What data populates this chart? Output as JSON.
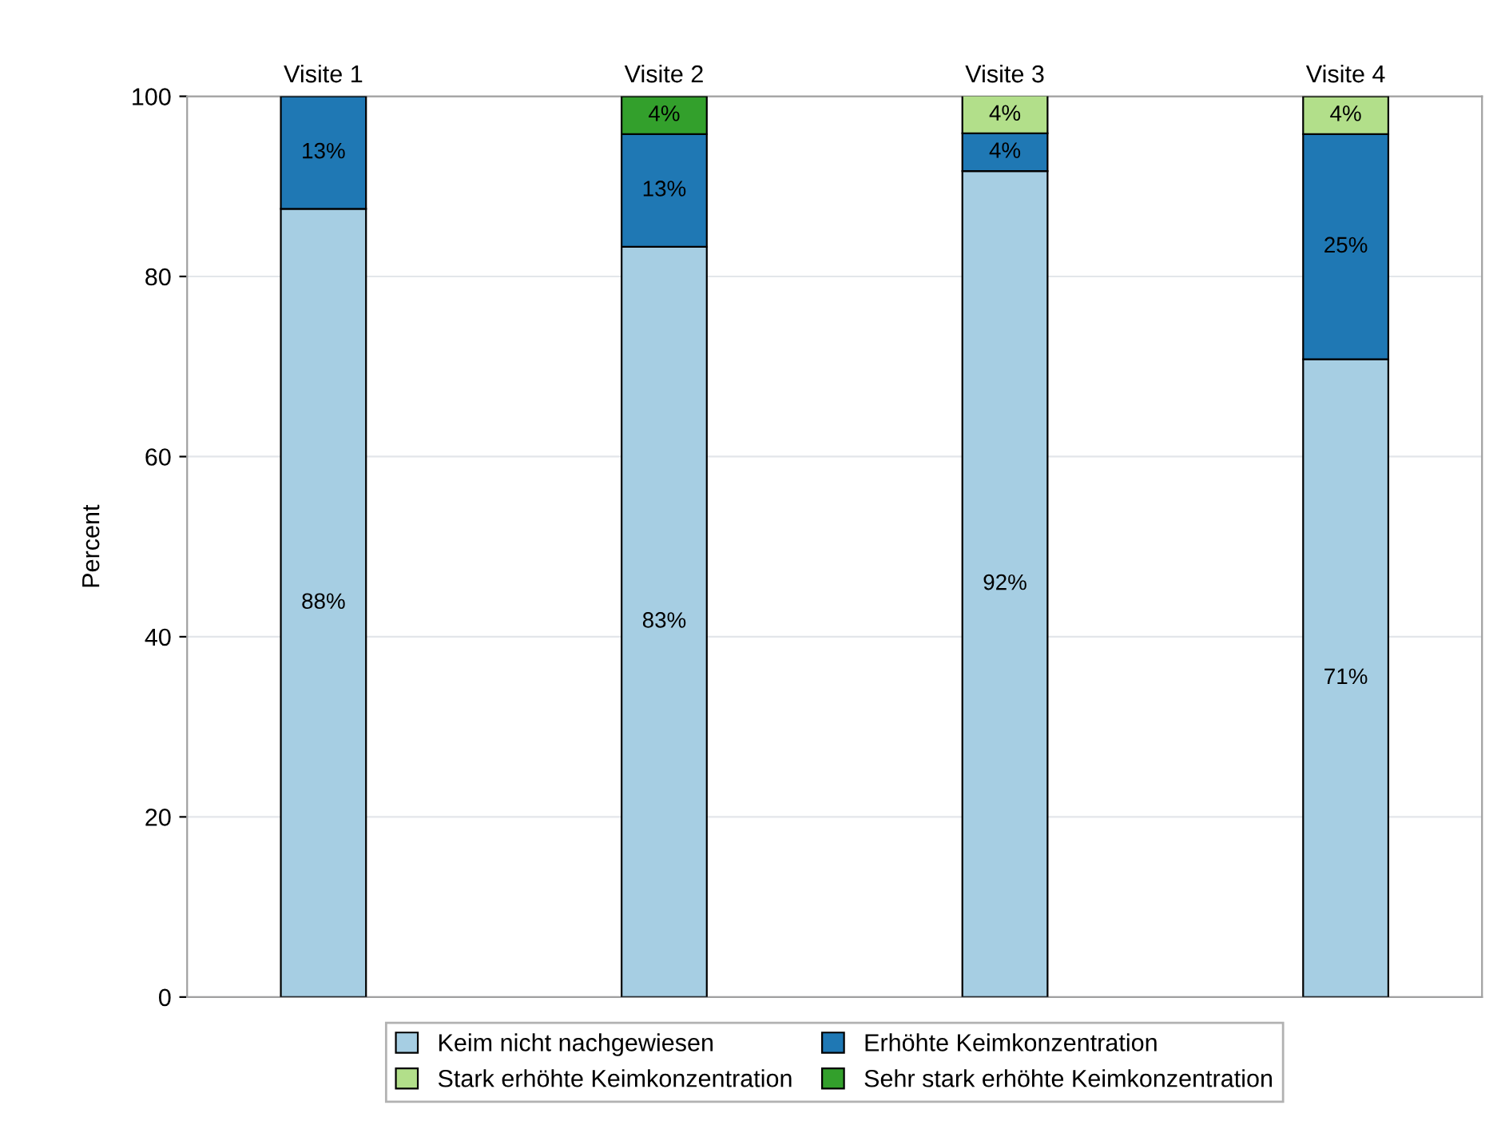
{
  "chart_data": {
    "type": "bar",
    "stacked": true,
    "categories": [
      "Visite 1",
      "Visite 2",
      "Visite 3",
      "Visite 4"
    ],
    "ylabel": "Percent",
    "ylim": [
      0,
      100
    ],
    "yticks": [
      0,
      20,
      40,
      60,
      80,
      100
    ],
    "grid": "y",
    "legend": "bottom",
    "series": [
      {
        "name": "Keim nicht nachgewiesen",
        "color": "#a6cee3",
        "values": [
          87.5,
          83.3,
          91.7,
          70.8
        ],
        "value_labels": [
          "88%",
          "83%",
          "92%",
          "71%"
        ]
      },
      {
        "name": "Erhöhte Keimkonzentration",
        "color": "#1f78b4",
        "values": [
          12.5,
          12.5,
          4.2,
          25
        ],
        "value_labels": [
          "13%",
          "13%",
          "4%",
          "25%"
        ]
      },
      {
        "name": "Stark erhöhte Keimkonzentration",
        "color": "#b2df8a",
        "values": [
          null,
          null,
          4.2,
          4.2
        ],
        "value_labels": [
          null,
          null,
          "4%",
          "4%"
        ]
      },
      {
        "name": "Sehr stark erhöhte Keimkonzentration",
        "color": "#33a02c",
        "values": [
          null,
          4.2,
          null,
          null
        ],
        "value_labels": [
          null,
          "4%",
          null,
          null
        ]
      }
    ]
  }
}
